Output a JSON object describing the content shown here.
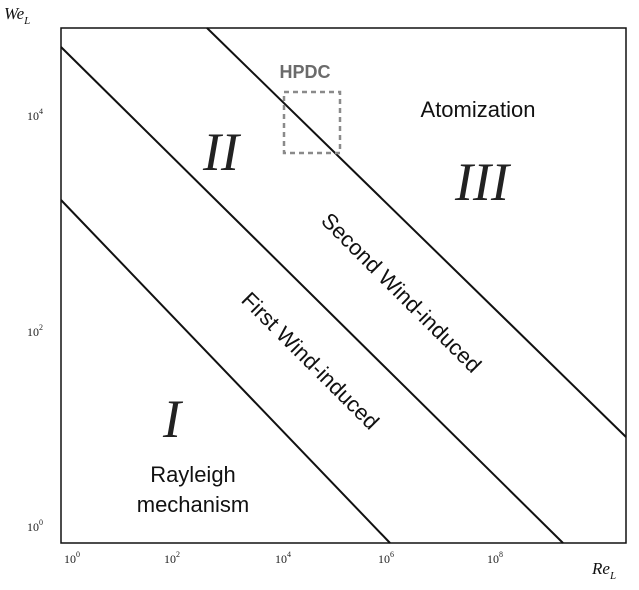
{
  "axes": {
    "x_title_base": "Re",
    "x_title_sub": "L",
    "y_title_base": "We",
    "y_title_sub": "L",
    "x_ticks": [
      {
        "base": "10",
        "exp": "0"
      },
      {
        "base": "10",
        "exp": "2"
      },
      {
        "base": "10",
        "exp": "4"
      },
      {
        "base": "10",
        "exp": "6"
      },
      {
        "base": "10",
        "exp": "8"
      }
    ],
    "y_ticks": [
      {
        "base": "10",
        "exp": "0"
      },
      {
        "base": "10",
        "exp": "2"
      },
      {
        "base": "10",
        "exp": "4"
      }
    ]
  },
  "regions": {
    "roman_1": "I",
    "roman_2": "II",
    "roman_3": "III",
    "rayleigh_line1": "Rayleigh",
    "rayleigh_line2": "mechanism",
    "first_wind": "First Wind-induced",
    "second_wind": "Second Wind-induced",
    "atomization": "Atomization"
  },
  "hpdc": {
    "label": "HPDC",
    "border_color": "#888888"
  },
  "colors": {
    "line": "#111111",
    "frame": "#111111",
    "text": "#111111"
  }
}
